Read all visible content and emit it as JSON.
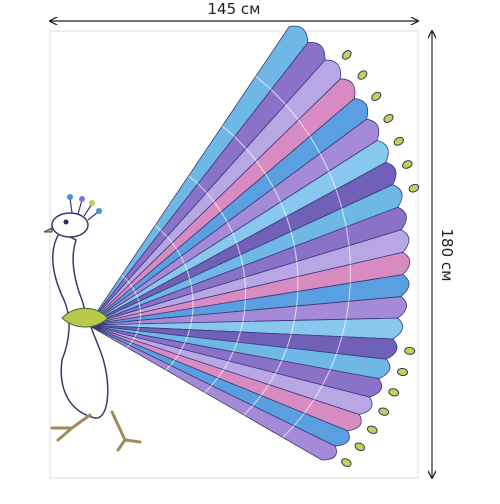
{
  "dimensions": {
    "width_label": "145 см",
    "height_label": "180 см"
  }
}
